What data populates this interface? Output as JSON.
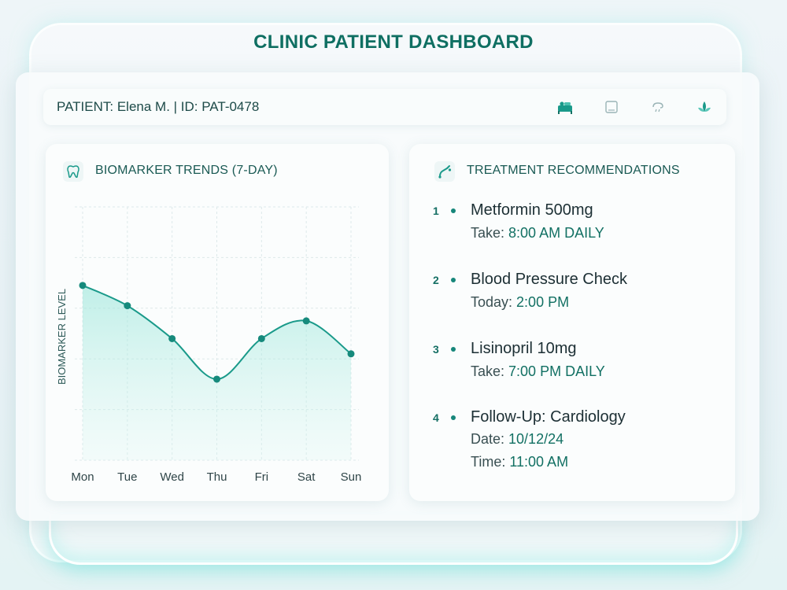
{
  "title": "CLINIC PATIENT DASHBOARD",
  "patient": {
    "text": "PATIENT: Elena M. | ID: PAT-0478"
  },
  "toolbar_icons": [
    "bed-icon",
    "square-icon",
    "cloud-rain-icon",
    "lotus-icon"
  ],
  "biomarker": {
    "title": "BIOMARKER TRENDS (7-DAY)",
    "icon": "tooth-icon"
  },
  "chart_data": {
    "type": "area",
    "title": "BIOMARKER TRENDS (7-DAY)",
    "categories": [
      "Mon",
      "Tue",
      "Wed",
      "Thu",
      "Fri",
      "Sat",
      "Sun"
    ],
    "values": [
      6.9,
      6.1,
      4.8,
      3.2,
      4.8,
      5.5,
      4.2
    ],
    "xlabel": "",
    "ylabel": "BIOMARKER LEVEL",
    "ylim": [
      0,
      10
    ],
    "grid": true,
    "accent": "#1a9a8a"
  },
  "treatment": {
    "title": "TREATMENT RECOMMENDATIONS",
    "icon": "stethoscope-icon",
    "items": [
      {
        "num": "1",
        "name": "Metformin 500mg",
        "lines": [
          {
            "k": "Take: ",
            "v": "8:00 AM DAILY"
          }
        ]
      },
      {
        "num": "2",
        "name": "Blood Pressure Check",
        "lines": [
          {
            "k": "Today: ",
            "v": "2:00 PM"
          }
        ]
      },
      {
        "num": "3",
        "name": "Lisinopril 10mg",
        "lines": [
          {
            "k": "Take: ",
            "v": "7:00 PM DAILY"
          }
        ]
      },
      {
        "num": "4",
        "name": "Follow-Up: Cardiology",
        "lines": [
          {
            "k": "Date: ",
            "v": "10/12/24"
          },
          {
            "k": "Time: ",
            "v": "11:00 AM"
          }
        ]
      }
    ]
  }
}
